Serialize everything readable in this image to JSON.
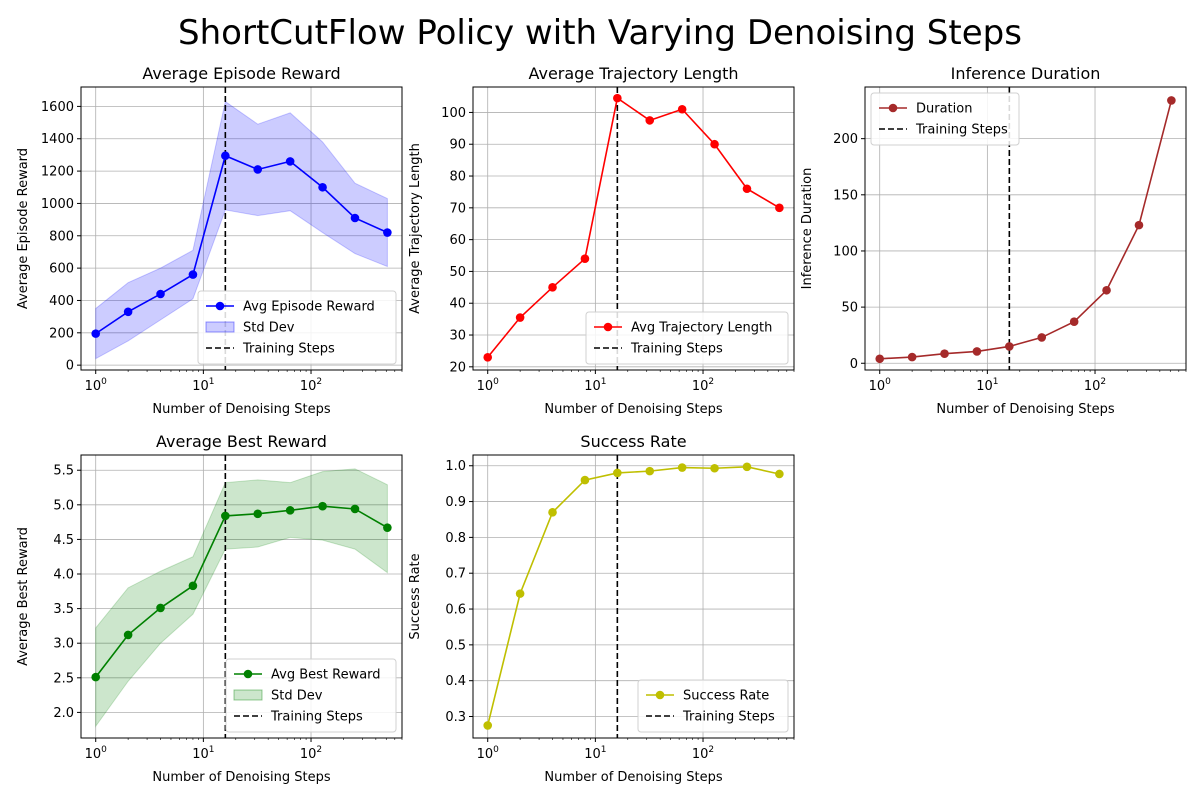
{
  "figure_title": "ShortCutFlow Policy with Varying Denoising Steps",
  "chart_data": [
    {
      "type": "line",
      "title": "Average Episode Reward",
      "xlabel": "Number of Denoising Steps",
      "ylabel": "Average Episode Reward",
      "xscale": "log",
      "xlim": [
        0.73,
        700
      ],
      "ylim": [
        -30,
        1720
      ],
      "xticks": [
        {
          "value": 1,
          "base": "10",
          "exp": "0"
        },
        {
          "value": 10,
          "base": "10",
          "exp": "1"
        },
        {
          "value": 100,
          "base": "10",
          "exp": "2"
        }
      ],
      "yticks": [
        0,
        200,
        400,
        600,
        800,
        1000,
        1200,
        1400,
        1600
      ],
      "x": [
        1,
        2,
        4,
        8,
        16,
        32,
        64,
        128,
        256,
        512
      ],
      "series": [
        {
          "name": "Avg Episode Reward",
          "color": "#0000ff",
          "values": [
            195,
            330,
            440,
            560,
            1295,
            1210,
            1260,
            1100,
            910,
            820
          ]
        }
      ],
      "band": {
        "name": "Std Dev",
        "color": "#0000ff",
        "lower": [
          40,
          150,
          280,
          410,
          960,
          925,
          955,
          820,
          690,
          610
        ],
        "upper": [
          350,
          510,
          600,
          710,
          1630,
          1490,
          1560,
          1380,
          1125,
          1030
        ]
      },
      "vline": {
        "name": "Training Steps",
        "x": 16
      },
      "legend": [
        {
          "label": "Avg Episode Reward",
          "kind": "line"
        },
        {
          "label": "Std Dev",
          "kind": "band"
        },
        {
          "label": "Training Steps",
          "kind": "dash"
        }
      ],
      "legend_loc": "lower-right",
      "grid": true
    },
    {
      "type": "line",
      "title": "Average Trajectory Length",
      "xlabel": "Number of Denoising Steps",
      "ylabel": "Average Trajectory Length",
      "xscale": "log",
      "xlim": [
        0.73,
        700
      ],
      "ylim": [
        19,
        108
      ],
      "xticks": [
        {
          "value": 1,
          "base": "10",
          "exp": "0"
        },
        {
          "value": 10,
          "base": "10",
          "exp": "1"
        },
        {
          "value": 100,
          "base": "10",
          "exp": "2"
        }
      ],
      "yticks": [
        20,
        30,
        40,
        50,
        60,
        70,
        80,
        90,
        100
      ],
      "x": [
        1,
        2,
        4,
        8,
        16,
        32,
        64,
        128,
        256,
        512
      ],
      "series": [
        {
          "name": "Avg Trajectory Length",
          "color": "#ff0000",
          "values": [
            23,
            35.5,
            45,
            54,
            104.5,
            97.5,
            101,
            90,
            76,
            70
          ]
        }
      ],
      "vline": {
        "name": "Training Steps",
        "x": 16
      },
      "legend": [
        {
          "label": "Avg Trajectory Length",
          "kind": "line"
        },
        {
          "label": "Training Steps",
          "kind": "dash"
        }
      ],
      "legend_loc": "lower-right",
      "grid": true
    },
    {
      "type": "line",
      "title": "Inference Duration",
      "xlabel": "Number of Denoising Steps",
      "ylabel": "Inference Duration",
      "xscale": "log",
      "xlim": [
        0.73,
        700
      ],
      "ylim": [
        -6,
        246
      ],
      "xticks": [
        {
          "value": 1,
          "base": "10",
          "exp": "0"
        },
        {
          "value": 10,
          "base": "10",
          "exp": "1"
        },
        {
          "value": 100,
          "base": "10",
          "exp": "2"
        }
      ],
      "yticks": [
        0,
        50,
        100,
        150,
        200
      ],
      "x": [
        1,
        2,
        4,
        8,
        16,
        32,
        64,
        128,
        256,
        512
      ],
      "series": [
        {
          "name": "Duration",
          "color": "#a52a2a",
          "values": [
            4,
            5.5,
            8.5,
            10.5,
            15,
            23,
            37,
            65,
            123,
            234
          ]
        }
      ],
      "vline": {
        "name": "Training Steps",
        "x": 16
      },
      "legend": [
        {
          "label": "Duration",
          "kind": "line"
        },
        {
          "label": "Training Steps",
          "kind": "dash"
        }
      ],
      "legend_loc": "upper-left",
      "grid": true
    },
    {
      "type": "line",
      "title": "Average Best Reward",
      "xlabel": "Number of Denoising Steps",
      "ylabel": "Average Best Reward",
      "xscale": "log",
      "xlim": [
        0.73,
        700
      ],
      "ylim": [
        1.63,
        5.72
      ],
      "xticks": [
        {
          "value": 1,
          "base": "10",
          "exp": "0"
        },
        {
          "value": 10,
          "base": "10",
          "exp": "1"
        },
        {
          "value": 100,
          "base": "10",
          "exp": "2"
        }
      ],
      "yticks": [
        2.0,
        2.5,
        3.0,
        3.5,
        4.0,
        4.5,
        5.0,
        5.5
      ],
      "x": [
        1,
        2,
        4,
        8,
        16,
        32,
        64,
        128,
        256,
        512
      ],
      "series": [
        {
          "name": "Avg Best Reward",
          "color": "#008000",
          "values": [
            2.51,
            3.12,
            3.51,
            3.83,
            4.84,
            4.87,
            4.92,
            4.98,
            4.94,
            4.67
          ]
        }
      ],
      "band": {
        "name": "Std Dev",
        "color": "#008000",
        "lower": [
          1.8,
          2.45,
          3.0,
          3.42,
          4.36,
          4.39,
          4.53,
          4.49,
          4.36,
          4.02
        ],
        "upper": [
          3.22,
          3.8,
          4.04,
          4.25,
          5.32,
          5.36,
          5.32,
          5.48,
          5.52,
          5.29
        ]
      },
      "vline": {
        "name": "Training Steps",
        "x": 16
      },
      "legend": [
        {
          "label": "Avg Best Reward",
          "kind": "line"
        },
        {
          "label": "Std Dev",
          "kind": "band"
        },
        {
          "label": "Training Steps",
          "kind": "dash"
        }
      ],
      "legend_loc": "lower-right",
      "grid": true
    },
    {
      "type": "line",
      "title": "Success Rate",
      "xlabel": "Number of Denoising Steps",
      "ylabel": "Success Rate",
      "xscale": "log",
      "xlim": [
        0.73,
        700
      ],
      "ylim": [
        0.24,
        1.03
      ],
      "xticks": [
        {
          "value": 1,
          "base": "10",
          "exp": "0"
        },
        {
          "value": 10,
          "base": "10",
          "exp": "1"
        },
        {
          "value": 100,
          "base": "10",
          "exp": "2"
        }
      ],
      "yticks": [
        0.3,
        0.4,
        0.5,
        0.6,
        0.7,
        0.8,
        0.9,
        1.0
      ],
      "x": [
        1,
        2,
        4,
        8,
        16,
        32,
        64,
        128,
        256,
        512
      ],
      "series": [
        {
          "name": "Success Rate",
          "color": "#bfbf00",
          "values": [
            0.275,
            0.643,
            0.87,
            0.96,
            0.98,
            0.985,
            0.995,
            0.993,
            0.997,
            0.977
          ]
        }
      ],
      "vline": {
        "name": "Training Steps",
        "x": 16
      },
      "legend": [
        {
          "label": "Success Rate",
          "kind": "line"
        },
        {
          "label": "Training Steps",
          "kind": "dash"
        }
      ],
      "legend_loc": "lower-right",
      "grid": true
    }
  ]
}
